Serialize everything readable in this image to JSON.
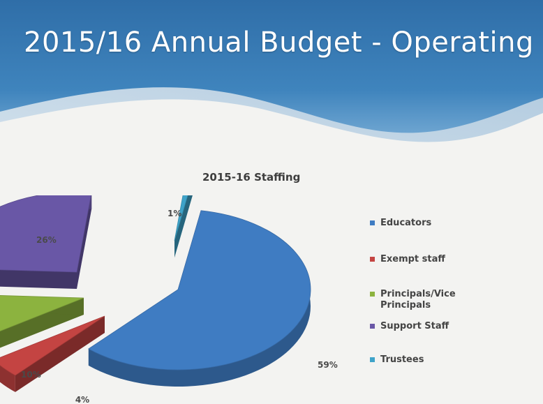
{
  "slide": {
    "title": "2015/16 Annual Budget - Operating"
  },
  "chart_data": {
    "type": "pie",
    "style": "3d-exploded",
    "title": "2015-16 Staffing",
    "slices": [
      {
        "label": "Educators",
        "value": 59,
        "display": "59%",
        "color": "#3f7cc2"
      },
      {
        "label": "Exempt staff",
        "value": 4,
        "display": "4%",
        "color": "#c44442"
      },
      {
        "label": "Principals/Vice Principals",
        "value": 10,
        "display": "10%",
        "color": "#8cb33f"
      },
      {
        "label": "Support Staff",
        "value": 26,
        "display": "26%",
        "color": "#6957a6"
      },
      {
        "label": "Trustees",
        "value": 1,
        "display": "1%",
        "color": "#3ea3c9"
      }
    ],
    "legend_position": "right"
  }
}
